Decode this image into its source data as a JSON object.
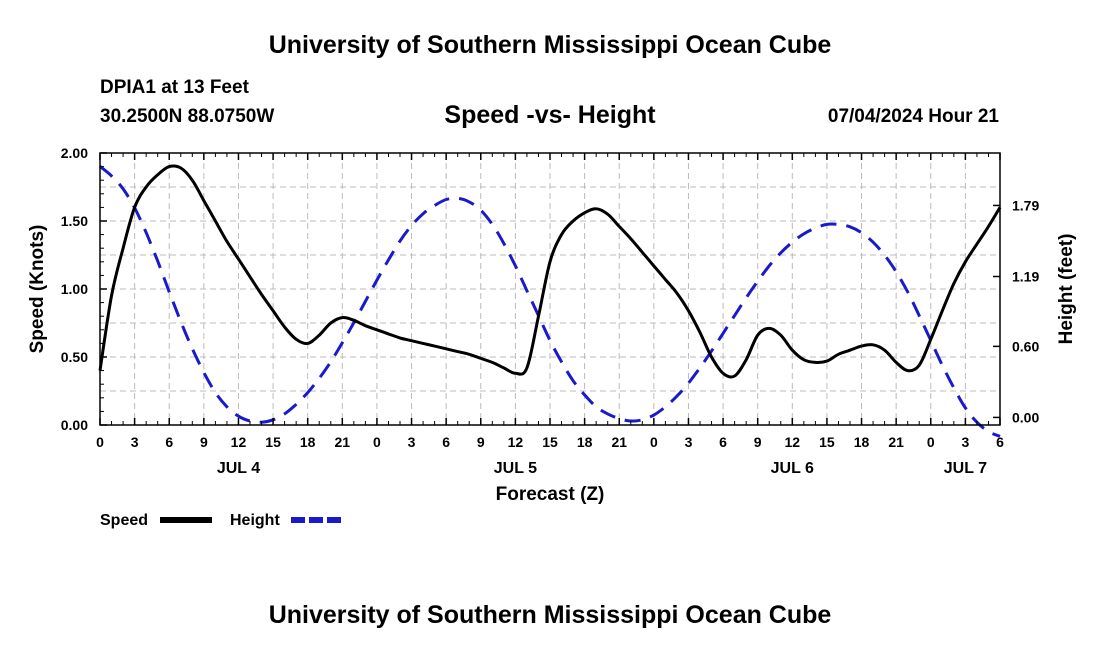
{
  "header": {
    "title": "University of Southern Mississippi Ocean Cube",
    "station": "DPIA1 at 13 Feet",
    "coords": "30.2500N  88.0750W",
    "subtitle": "Speed -vs- Height",
    "datetime": "07/04/2024 Hour 21"
  },
  "footer": {
    "title": "University of Southern Mississippi Ocean Cube"
  },
  "colors": {
    "speed": "#000000",
    "height": "#1a1acc",
    "grid": "#bbbbbb"
  },
  "chart_data": {
    "type": "line",
    "title": "Speed -vs- Height",
    "xlabel": "Forecast (Z)",
    "ylabel": "Speed (Knots)",
    "y2label": "Height (feet)",
    "xlim": [
      0,
      78
    ],
    "ylim": [
      0,
      2.0
    ],
    "y2lim": [
      -0.064,
      2.233
    ],
    "x_ticks": [
      0,
      3,
      6,
      9,
      12,
      15,
      18,
      21,
      24,
      27,
      30,
      33,
      36,
      39,
      42,
      45,
      48,
      51,
      54,
      57,
      60,
      63,
      66,
      69,
      72,
      75,
      78
    ],
    "x_tick_labels": [
      "0",
      "3",
      "6",
      "9",
      "12",
      "15",
      "18",
      "21",
      "0",
      "3",
      "6",
      "9",
      "12",
      "15",
      "18",
      "21",
      "0",
      "3",
      "6",
      "9",
      "12",
      "15",
      "18",
      "21",
      "0",
      "3",
      "6"
    ],
    "y_ticks": [
      0,
      0.5,
      1.0,
      1.5,
      2.0
    ],
    "y_tick_labels": [
      "0.00",
      "0.50",
      "1.00",
      "1.50",
      "2.00"
    ],
    "y2_ticks": [
      0,
      0.6,
      1.19,
      1.79
    ],
    "y2_tick_labels": [
      "0.00",
      "0.60",
      "1.19",
      "1.79"
    ],
    "day_labels": [
      {
        "x": 12,
        "label": "JUL 4"
      },
      {
        "x": 36,
        "label": "JUL 5"
      },
      {
        "x": 60,
        "label": "JUL 6"
      },
      {
        "x": 75,
        "label": "JUL 7"
      }
    ],
    "grid": true,
    "legend": {
      "placement": "bottom-left",
      "entries": [
        "Speed",
        "Height"
      ]
    },
    "series": [
      {
        "name": "Speed",
        "axis": "left",
        "style": "solid",
        "x": [
          0,
          1,
          2,
          3,
          4,
          5,
          6,
          7,
          8,
          9,
          10,
          11,
          12,
          13,
          14,
          15,
          16,
          17,
          18,
          19,
          20,
          21,
          22,
          23,
          24,
          25,
          26,
          27,
          28,
          29,
          30,
          31,
          32,
          33,
          34,
          35,
          36,
          37,
          38,
          39,
          40,
          41,
          42,
          43,
          44,
          45,
          46,
          47,
          48,
          49,
          50,
          51,
          52,
          53,
          54,
          55,
          56,
          57,
          58,
          59,
          60,
          61,
          62,
          63,
          64,
          65,
          66,
          67,
          68,
          69,
          70,
          71,
          72,
          73,
          74,
          75,
          76,
          77,
          78
        ],
        "values": [
          0.4,
          0.95,
          1.3,
          1.6,
          1.75,
          1.84,
          1.9,
          1.89,
          1.8,
          1.65,
          1.5,
          1.35,
          1.22,
          1.09,
          0.96,
          0.84,
          0.72,
          0.63,
          0.6,
          0.66,
          0.75,
          0.79,
          0.77,
          0.73,
          0.7,
          0.67,
          0.64,
          0.62,
          0.6,
          0.58,
          0.56,
          0.54,
          0.52,
          0.49,
          0.46,
          0.42,
          0.38,
          0.42,
          0.8,
          1.2,
          1.4,
          1.5,
          1.56,
          1.59,
          1.55,
          1.46,
          1.37,
          1.27,
          1.17,
          1.07,
          0.97,
          0.84,
          0.68,
          0.5,
          0.38,
          0.36,
          0.48,
          0.66,
          0.71,
          0.66,
          0.55,
          0.48,
          0.46,
          0.47,
          0.52,
          0.55,
          0.58,
          0.59,
          0.55,
          0.46,
          0.4,
          0.44,
          0.63,
          0.84,
          1.04,
          1.2,
          1.33,
          1.46,
          1.6
        ]
      },
      {
        "name": "Height",
        "axis": "right",
        "style": "dashed",
        "x": [
          0,
          1,
          2,
          3,
          4,
          5,
          6,
          7,
          8,
          9,
          10,
          11,
          12,
          13,
          14,
          15,
          16,
          17,
          18,
          19,
          20,
          21,
          22,
          23,
          24,
          25,
          26,
          27,
          28,
          29,
          30,
          31,
          32,
          33,
          34,
          35,
          36,
          37,
          38,
          39,
          40,
          41,
          42,
          43,
          44,
          45,
          46,
          47,
          48,
          49,
          50,
          51,
          52,
          53,
          54,
          55,
          56,
          57,
          58,
          59,
          60,
          61,
          62,
          63,
          64,
          65,
          66,
          67,
          68,
          69,
          70,
          71,
          72,
          73,
          74,
          75,
          76,
          77,
          78
        ],
        "values": [
          2.12,
          2.04,
          1.93,
          1.77,
          1.56,
          1.32,
          1.06,
          0.81,
          0.58,
          0.38,
          0.21,
          0.09,
          0.01,
          -0.03,
          -0.04,
          -0.02,
          0.03,
          0.11,
          0.21,
          0.33,
          0.47,
          0.63,
          0.8,
          0.98,
          1.16,
          1.33,
          1.49,
          1.62,
          1.72,
          1.79,
          1.84,
          1.85,
          1.82,
          1.75,
          1.63,
          1.47,
          1.28,
          1.07,
          0.86,
          0.65,
          0.47,
          0.31,
          0.19,
          0.09,
          0.03,
          -0.01,
          -0.03,
          -0.02,
          0.02,
          0.09,
          0.18,
          0.29,
          0.42,
          0.56,
          0.71,
          0.86,
          1.01,
          1.15,
          1.28,
          1.39,
          1.48,
          1.55,
          1.6,
          1.63,
          1.63,
          1.61,
          1.56,
          1.48,
          1.37,
          1.23,
          1.06,
          0.86,
          0.65,
          0.44,
          0.25,
          0.08,
          -0.04,
          -0.12,
          -0.16
        ]
      }
    ]
  }
}
